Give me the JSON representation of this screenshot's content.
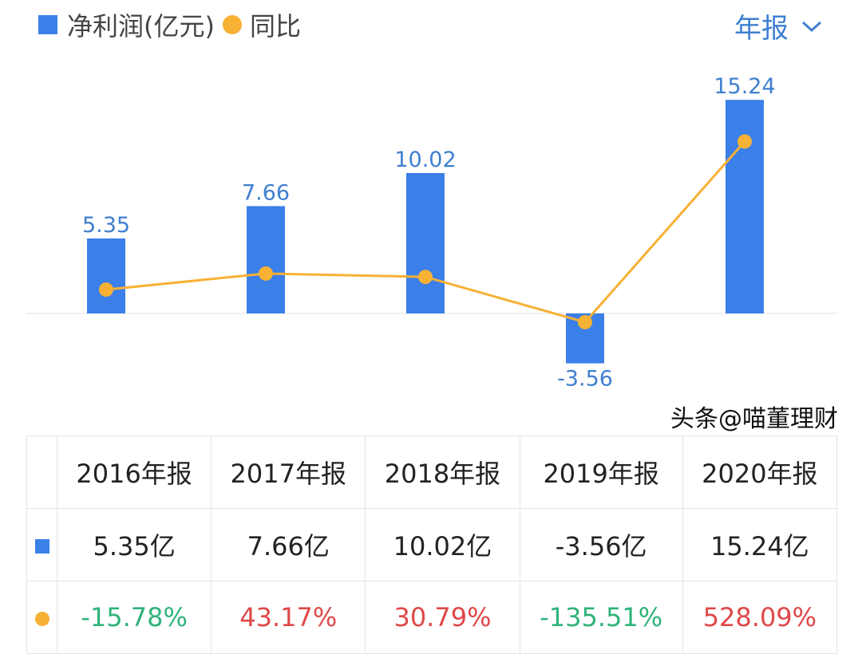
{
  "legend": {
    "bar_label": "净利润(亿元)",
    "line_label": "同比"
  },
  "period_selector": {
    "label": "年报"
  },
  "chart_data": {
    "type": "bar+line",
    "categories": [
      "2016年报",
      "2017年报",
      "2018年报",
      "2019年报",
      "2020年报"
    ],
    "series": [
      {
        "name": "净利润(亿元)",
        "type": "bar",
        "values": [
          5.35,
          7.66,
          10.02,
          -3.56,
          15.24
        ],
        "labels": [
          "5.35",
          "7.66",
          "10.02",
          "-3.56",
          "15.24"
        ],
        "color": "#3b7fe8"
      },
      {
        "name": "同比",
        "type": "line",
        "values": [
          -15.78,
          43.17,
          30.79,
          -135.51,
          528.09
        ],
        "color": "#f7b134"
      }
    ]
  },
  "table": {
    "headers": [
      "2016年报",
      "2017年报",
      "2018年报",
      "2019年报",
      "2020年报"
    ],
    "profit": [
      "5.35亿",
      "7.66亿",
      "10.02亿",
      "-3.56亿",
      "15.24亿"
    ],
    "yoy": [
      "-15.78%",
      "43.17%",
      "30.79%",
      "-135.51%",
      "528.09%"
    ]
  },
  "watermark": "头条@喵董理财"
}
